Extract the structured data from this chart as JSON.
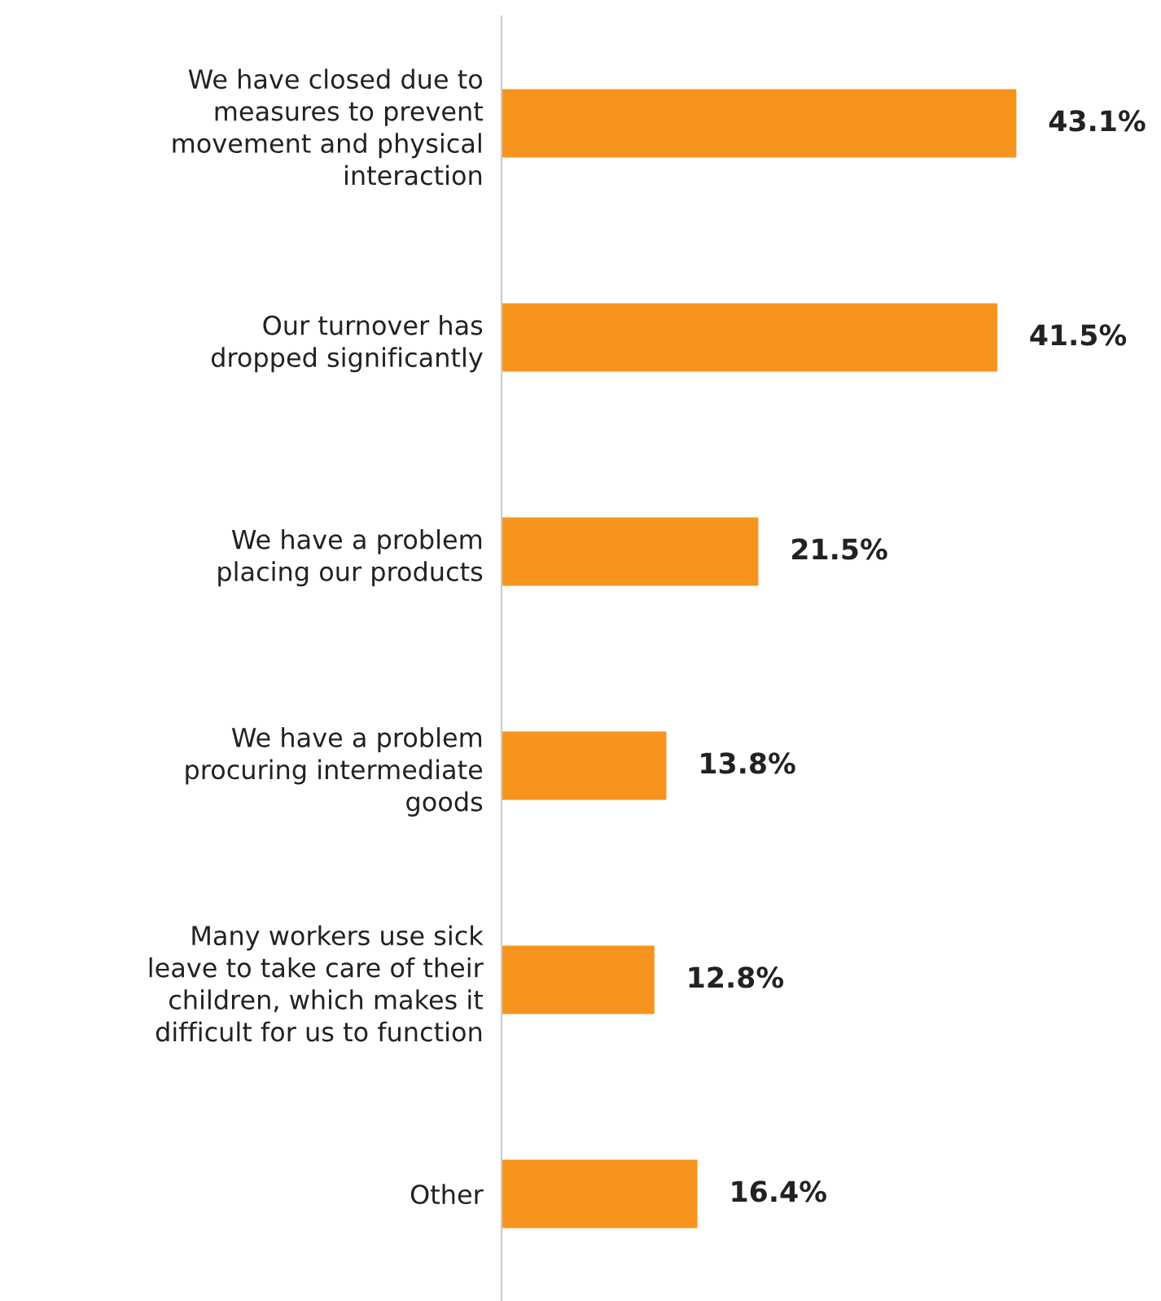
{
  "chart_data": {
    "type": "bar",
    "orientation": "horizontal",
    "categories": [
      "We have closed due to\nmeasures to prevent\nmovement and physical\ninteraction",
      "Our turnover has\ndropped significantly",
      "We have a problem\nplacing our products",
      "We have a problem\nprocuring intermediate\ngoods",
      "Many workers use sick\nleave to take care of their\nchildren, which makes it\ndifficult for us to function",
      "Other"
    ],
    "values": [
      43.1,
      41.5,
      21.5,
      13.8,
      12.8,
      16.4
    ],
    "value_labels": [
      "43.1%",
      "41.5%",
      "21.5%",
      "13.8%",
      "12.8%",
      "16.4%"
    ],
    "color": "#f7941d",
    "grid": false,
    "legend": false,
    "tick_labels": "y"
  }
}
